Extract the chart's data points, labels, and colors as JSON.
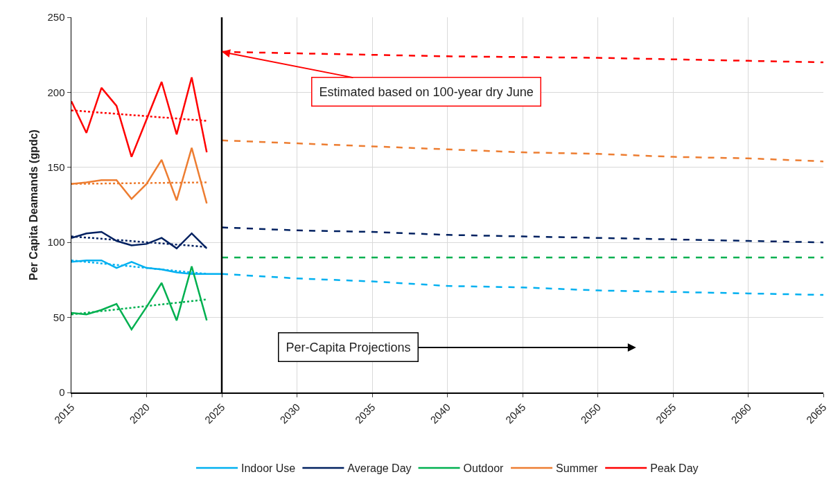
{
  "chart_data": {
    "type": "line",
    "ylabel": "Per Capita Deamands (gpdc)",
    "xlim": [
      2015,
      2065
    ],
    "xticks": [
      2015,
      2020,
      2025,
      2030,
      2035,
      2040,
      2045,
      2050,
      2055,
      2060,
      2065
    ],
    "ylim": [
      0,
      250
    ],
    "yticks": [
      0,
      50,
      100,
      150,
      200,
      250
    ],
    "grid": true,
    "legend": "bottom",
    "marker": "none",
    "ref_lines": [
      {
        "axis": "x",
        "value": 2025,
        "color": "#000000",
        "line_style": "solid"
      }
    ],
    "annotations": [
      {
        "text": "Estimated based on 100-year dry June",
        "x": 2025,
        "y": 227
      },
      "Per-Capita Projections"
    ],
    "series": [
      {
        "name": "Indoor Use",
        "color": "#00b0f0",
        "line_style": "solid",
        "x": [
          2015,
          2016,
          2017,
          2018,
          2019,
          2020,
          2021,
          2022,
          2023,
          2024,
          2025
        ],
        "values": [
          87,
          88,
          88,
          83,
          87,
          83,
          82,
          80,
          79,
          79,
          79
        ]
      },
      {
        "name": "Average Day",
        "color": "#002060",
        "line_style": "solid",
        "x": [
          2015,
          2016,
          2017,
          2018,
          2019,
          2020,
          2021,
          2022,
          2023,
          2024
        ],
        "values": [
          103,
          106,
          107,
          101,
          98,
          99,
          103,
          96,
          106,
          96
        ]
      },
      {
        "name": "Outdoor",
        "color": "#00b050",
        "line_style": "solid",
        "x": [
          2015,
          2016,
          2017,
          2018,
          2019,
          2020,
          2021,
          2022,
          2023,
          2024
        ],
        "values": [
          53,
          52,
          55,
          59,
          42,
          57,
          73,
          48,
          84,
          48
        ]
      },
      {
        "name": "Summer",
        "color": "#ed7d31",
        "line_style": "solid",
        "x": [
          2015,
          2016,
          2017,
          2018,
          2019,
          2020,
          2021,
          2022,
          2023,
          2024
        ],
        "values": [
          139,
          140,
          141.5,
          141.5,
          129,
          139,
          155,
          128,
          163,
          126
        ]
      },
      {
        "name": "Peak Day",
        "color": "#ff0000",
        "line_style": "solid",
        "x": [
          2015,
          2016,
          2017,
          2018,
          2019,
          2020,
          2021,
          2022,
          2023,
          2024
        ],
        "values": [
          194,
          173,
          203,
          191,
          157,
          182,
          207,
          172,
          210,
          160
        ]
      },
      {
        "color": "#00b0f0",
        "line_style": "dotted",
        "x": [
          2015,
          2024
        ],
        "values": [
          88,
          79
        ]
      },
      {
        "color": "#002060",
        "line_style": "dotted",
        "x": [
          2015,
          2024
        ],
        "values": [
          104,
          97
        ]
      },
      {
        "color": "#00b050",
        "line_style": "dotted",
        "x": [
          2015,
          2024
        ],
        "values": [
          52,
          62
        ]
      },
      {
        "color": "#ed7d31",
        "line_style": "dotted",
        "x": [
          2015,
          2024
        ],
        "values": [
          139,
          140
        ]
      },
      {
        "color": "#ff0000",
        "line_style": "dotted",
        "x": [
          2015,
          2024
        ],
        "values": [
          188,
          181
        ]
      },
      {
        "color": "#00b0f0",
        "line_style": "dashed",
        "x": [
          2025,
          2030,
          2035,
          2040,
          2045,
          2050,
          2055,
          2060,
          2065
        ],
        "values": [
          79,
          76,
          74,
          71,
          70,
          68,
          67,
          66,
          65
        ]
      },
      {
        "color": "#002060",
        "line_style": "dashed",
        "x": [
          2025,
          2030,
          2035,
          2040,
          2045,
          2050,
          2055,
          2060,
          2065
        ],
        "values": [
          110,
          108,
          107,
          105,
          104,
          103,
          102,
          101,
          100
        ]
      },
      {
        "color": "#00b050",
        "line_style": "dashed",
        "x": [
          2025,
          2030,
          2035,
          2040,
          2045,
          2050,
          2055,
          2060,
          2065
        ],
        "values": [
          90,
          90,
          90,
          90,
          90,
          90,
          90,
          90,
          90
        ]
      },
      {
        "color": "#ed7d31",
        "line_style": "dashed",
        "x": [
          2025,
          2030,
          2035,
          2040,
          2045,
          2050,
          2055,
          2060,
          2065
        ],
        "values": [
          168,
          166,
          164,
          162,
          160,
          159,
          157,
          156,
          154
        ]
      },
      {
        "color": "#ff0000",
        "line_style": "dashed",
        "x": [
          2025,
          2030,
          2035,
          2040,
          2045,
          2050,
          2055,
          2060,
          2065
        ],
        "values": [
          227,
          226,
          225,
          224,
          223.5,
          223,
          222,
          221,
          220
        ]
      }
    ]
  }
}
